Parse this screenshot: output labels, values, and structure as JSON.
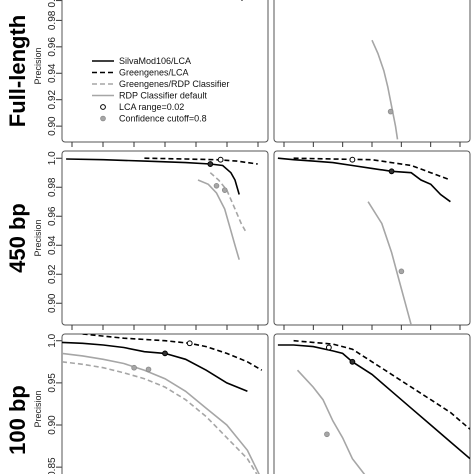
{
  "chart_data": {
    "type": "line",
    "series_styles": [
      {
        "name": "SilvaMod106/LCA",
        "color": "#000000",
        "dash": "",
        "width": 1.6
      },
      {
        "name": "Greengenes/LCA",
        "color": "#000000",
        "dash": "5,3",
        "width": 1.6
      },
      {
        "name": "Greengenes/RDP Classifier",
        "color": "#a6a6a6",
        "dash": "5,3",
        "width": 1.6
      },
      {
        "name": "RDP Classifier default",
        "color": "#a6a6a6",
        "dash": "",
        "width": 1.6
      }
    ],
    "legend": {
      "placement": "top-left-panel",
      "entries": [
        {
          "label": "SilvaMod106/LCA",
          "kind": "line",
          "color": "#000000",
          "dash": ""
        },
        {
          "label": "Greengenes/LCA",
          "kind": "line",
          "color": "#000000",
          "dash": "5,3"
        },
        {
          "label": "Greengenes/RDP Classifier",
          "kind": "line",
          "color": "#a6a6a6",
          "dash": "5,3"
        },
        {
          "label": "RDP Classifier default",
          "kind": "line",
          "color": "#a6a6a6",
          "dash": ""
        },
        {
          "label": "LCA range=0.02",
          "kind": "marker",
          "color": "#000000"
        },
        {
          "label": "Confidence cutoff=0.8",
          "kind": "marker",
          "color": "#a6a6a6"
        }
      ]
    },
    "rows": [
      {
        "label": "Full-length",
        "ylabel": "Precision",
        "ylim": [
          0.888,
          1.003
        ],
        "yticks": [
          "0.90",
          "0.92",
          "0.94",
          "0.96",
          "0.98"
        ],
        "yticks_values": [
          0.9,
          0.92,
          0.94,
          0.96,
          0.98
        ],
        "partial_tick": {
          "label": "0.9",
          "value": 0.995
        },
        "panels": [
          {
            "side": "left",
            "series": [
              {
                "name": "SilvaMod106/LCA",
                "x": [
                  0.86,
                  0.865,
                  0.875
                ],
                "y": [
                  1.003,
                  0.999,
                  0.995
                ]
              },
              {
                "name": "Greengenes/LCA",
                "x": [
                  0.885,
                  0.89
                ],
                "y": [
                  1.003,
                  0.999
                ]
              }
            ],
            "markers": [
              {
                "type": "lca",
                "x": 0.865,
                "y": 0.999
              }
            ]
          },
          {
            "side": "right",
            "series": [
              {
                "name": "RDP Classifier default",
                "x": [
                  0.5,
                  0.53,
                  0.56,
                  0.58,
                  0.6,
                  0.62,
                  0.63
                ],
                "y": [
                  0.965,
                  0.955,
                  0.942,
                  0.93,
                  0.915,
                  0.9,
                  0.89
                ]
              }
            ],
            "markers": [
              {
                "type": "confidence",
                "x": 0.595,
                "y": 0.911
              }
            ]
          }
        ]
      },
      {
        "label": "450 bp",
        "ylabel": "Precision",
        "ylim": [
          0.885,
          1.005
        ],
        "yticks": [
          "0.90",
          "0.92",
          "0.94",
          "0.96",
          "0.98",
          "1.0"
        ],
        "yticks_values": [
          0.9,
          0.92,
          0.94,
          0.96,
          0.98,
          1.0
        ],
        "panels": [
          {
            "side": "left",
            "series": [
              {
                "name": "SilvaMod106/LCA",
                "x": [
                  0.02,
                  0.2,
                  0.4,
                  0.6,
                  0.72,
                  0.78,
                  0.82,
                  0.84,
                  0.86
                ],
                "y": [
                  0.9995,
                  0.999,
                  0.998,
                  0.997,
                  0.996,
                  0.995,
                  0.99,
                  0.985,
                  0.975
                ]
              },
              {
                "name": "Greengenes/LCA",
                "x": [
                  0.4,
                  0.6,
                  0.75,
                  0.85,
                  0.9,
                  0.95
                ],
                "y": [
                  1.0,
                  0.9995,
                  0.999,
                  0.998,
                  0.997,
                  0.996
                ]
              },
              {
                "name": "Greengenes/RDP Classifier",
                "x": [
                  0.72,
                  0.76,
                  0.8,
                  0.84,
                  0.87,
                  0.89
                ],
                "y": [
                  0.99,
                  0.985,
                  0.978,
                  0.965,
                  0.955,
                  0.95
                ]
              },
              {
                "name": "RDP Classifier default",
                "x": [
                  0.66,
                  0.71,
                  0.75,
                  0.79,
                  0.82,
                  0.84,
                  0.86
                ],
                "y": [
                  0.985,
                  0.982,
                  0.976,
                  0.965,
                  0.95,
                  0.94,
                  0.93
                ]
              }
            ],
            "markers": [
              {
                "type": "lca",
                "x": 0.72,
                "y": 0.996
              },
              {
                "type": "lca_open",
                "x": 0.77,
                "y": 0.999
              },
              {
                "type": "confidence",
                "x": 0.75,
                "y": 0.981
              },
              {
                "type": "confidence",
                "x": 0.79,
                "y": 0.978
              }
            ]
          },
          {
            "side": "right",
            "series": [
              {
                "name": "SilvaMod106/LCA",
                "x": [
                  0.02,
                  0.1,
                  0.2,
                  0.3,
                  0.4,
                  0.5,
                  0.6,
                  0.7,
                  0.75,
                  0.8,
                  0.85,
                  0.9
                ],
                "y": [
                  1.0,
                  0.999,
                  0.998,
                  0.997,
                  0.995,
                  0.993,
                  0.991,
                  0.99,
                  0.985,
                  0.982,
                  0.975,
                  0.97
                ]
              },
              {
                "name": "Greengenes/LCA",
                "x": [
                  0.1,
                  0.3,
                  0.5,
                  0.7,
                  0.8,
                  0.9
                ],
                "y": [
                  1.0,
                  0.9995,
                  0.999,
                  0.995,
                  0.99,
                  0.985
                ]
              },
              {
                "name": "RDP Classifier default",
                "x": [
                  0.48,
                  0.55,
                  0.6,
                  0.64,
                  0.67,
                  0.7
                ],
                "y": [
                  0.97,
                  0.955,
                  0.935,
                  0.915,
                  0.9,
                  0.885
                ]
              }
            ],
            "markers": [
              {
                "type": "lca_open",
                "x": 0.4,
                "y": 0.999
              },
              {
                "type": "lca",
                "x": 0.6,
                "y": 0.991
              },
              {
                "type": "confidence",
                "x": 0.65,
                "y": 0.922
              }
            ]
          }
        ]
      },
      {
        "label": "100 bp",
        "ylabel": "Precision",
        "ylim": [
          0.83,
          1.008
        ],
        "yticks": [
          "0.85",
          "0.90",
          "0.95",
          "1.0"
        ],
        "yticks_values": [
          0.85,
          0.9,
          0.95,
          1.0
        ],
        "panels": [
          {
            "side": "left",
            "series": [
              {
                "name": "SilvaMod106/LCA",
                "x": [
                  0.0,
                  0.1,
                  0.2,
                  0.3,
                  0.4,
                  0.5,
                  0.6,
                  0.7,
                  0.8,
                  0.9
                ],
                "y": [
                  0.998,
                  0.997,
                  0.995,
                  0.992,
                  0.987,
                  0.985,
                  0.978,
                  0.965,
                  0.95,
                  0.94
                ]
              },
              {
                "name": "Greengenes/LCA",
                "x": [
                  0.1,
                  0.3,
                  0.5,
                  0.62,
                  0.7,
                  0.8,
                  0.9,
                  0.97
                ],
                "y": [
                  1.008,
                  1.003,
                  1.0,
                  0.997,
                  0.993,
                  0.985,
                  0.975,
                  0.965
                ]
              },
              {
                "name": "Greengenes/RDP Classifier",
                "x": [
                  0.0,
                  0.1,
                  0.2,
                  0.3,
                  0.4,
                  0.5,
                  0.6,
                  0.7,
                  0.8,
                  0.9,
                  0.95
                ],
                "y": [
                  0.975,
                  0.972,
                  0.968,
                  0.962,
                  0.955,
                  0.945,
                  0.93,
                  0.91,
                  0.885,
                  0.86,
                  0.84
                ]
              },
              {
                "name": "RDP Classifier default",
                "x": [
                  0.0,
                  0.1,
                  0.2,
                  0.3,
                  0.4,
                  0.5,
                  0.6,
                  0.7,
                  0.8,
                  0.9,
                  0.96
                ],
                "y": [
                  0.985,
                  0.982,
                  0.978,
                  0.973,
                  0.965,
                  0.955,
                  0.94,
                  0.92,
                  0.9,
                  0.87,
                  0.84
                ]
              }
            ],
            "markers": [
              {
                "type": "lca_open",
                "x": 0.62,
                "y": 0.997
              },
              {
                "type": "lca",
                "x": 0.5,
                "y": 0.985
              },
              {
                "type": "confidence",
                "x": 0.35,
                "y": 0.968
              },
              {
                "type": "confidence",
                "x": 0.42,
                "y": 0.966
              }
            ]
          },
          {
            "side": "right",
            "series": [
              {
                "name": "SilvaMod106/LCA",
                "x": [
                  0.02,
                  0.1,
                  0.2,
                  0.3,
                  0.35,
                  0.4,
                  0.5,
                  0.6,
                  0.7,
                  0.8,
                  0.9,
                  1.0
                ],
                "y": [
                  0.995,
                  0.995,
                  0.993,
                  0.988,
                  0.985,
                  0.975,
                  0.96,
                  0.94,
                  0.92,
                  0.9,
                  0.88,
                  0.86
                ]
              },
              {
                "name": "Greengenes/LCA",
                "x": [
                  0.1,
                  0.2,
                  0.3,
                  0.4,
                  0.5,
                  0.6,
                  0.7,
                  0.8,
                  0.9,
                  1.0
                ],
                "y": [
                  1.0,
                  0.998,
                  0.996,
                  0.99,
                  0.975,
                  0.96,
                  0.945,
                  0.93,
                  0.915,
                  0.895
                ]
              },
              {
                "name": "RDP Classifier default",
                "x": [
                  0.12,
                  0.2,
                  0.25,
                  0.3,
                  0.35,
                  0.4,
                  0.45,
                  0.5
                ],
                "y": [
                  0.965,
                  0.945,
                  0.93,
                  0.905,
                  0.885,
                  0.86,
                  0.845,
                  0.83
                ]
              }
            ],
            "markers": [
              {
                "type": "lca_open",
                "x": 0.28,
                "y": 0.992
              },
              {
                "type": "lca",
                "x": 0.4,
                "y": 0.975
              },
              {
                "type": "confidence",
                "x": 0.27,
                "y": 0.889
              }
            ]
          }
        ]
      }
    ]
  }
}
